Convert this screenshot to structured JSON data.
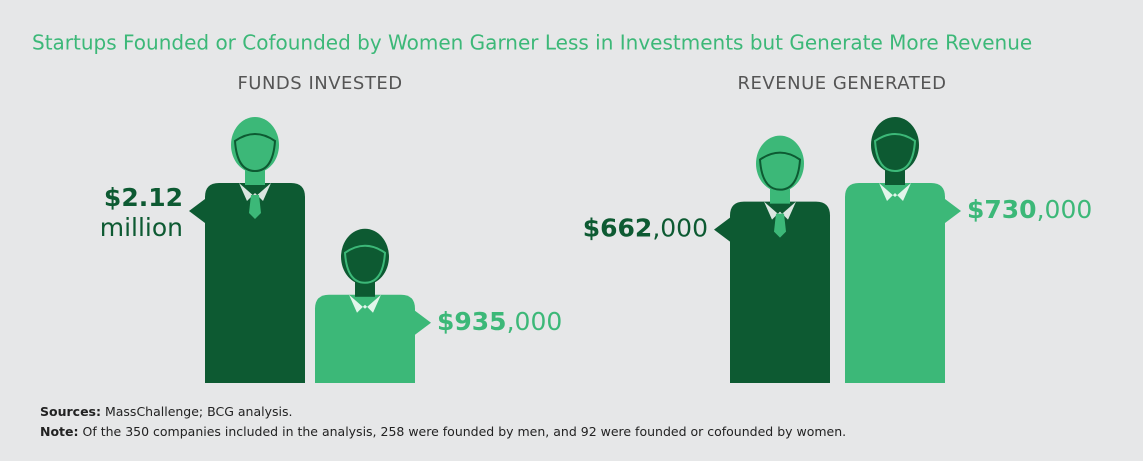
{
  "title": "Startups Founded or Cofounded by Women Garner Less in Investments but Generate More Revenue",
  "chart_data": [
    {
      "type": "bar",
      "title": "FUNDS INVESTED",
      "values": [
        2120000,
        935000
      ],
      "value_labels": [
        "$2.12 million",
        "$935,000"
      ],
      "colors": [
        "#0d5a32",
        "#3cb878"
      ]
    },
    {
      "type": "bar",
      "title": "REVENUE GENERATED",
      "values": [
        662000,
        730000
      ],
      "value_labels": [
        "$662,000",
        "$730,000"
      ],
      "colors": [
        "#0d5a32",
        "#3cb878"
      ]
    }
  ],
  "sources": {
    "label": "Sources:",
    "text": "MassChallenge; BCG analysis."
  },
  "note": {
    "label": "Note:",
    "text": "Of the 350 companies included in the analysis, 258 were founded by men, and 92 were founded or cofounded by women."
  }
}
